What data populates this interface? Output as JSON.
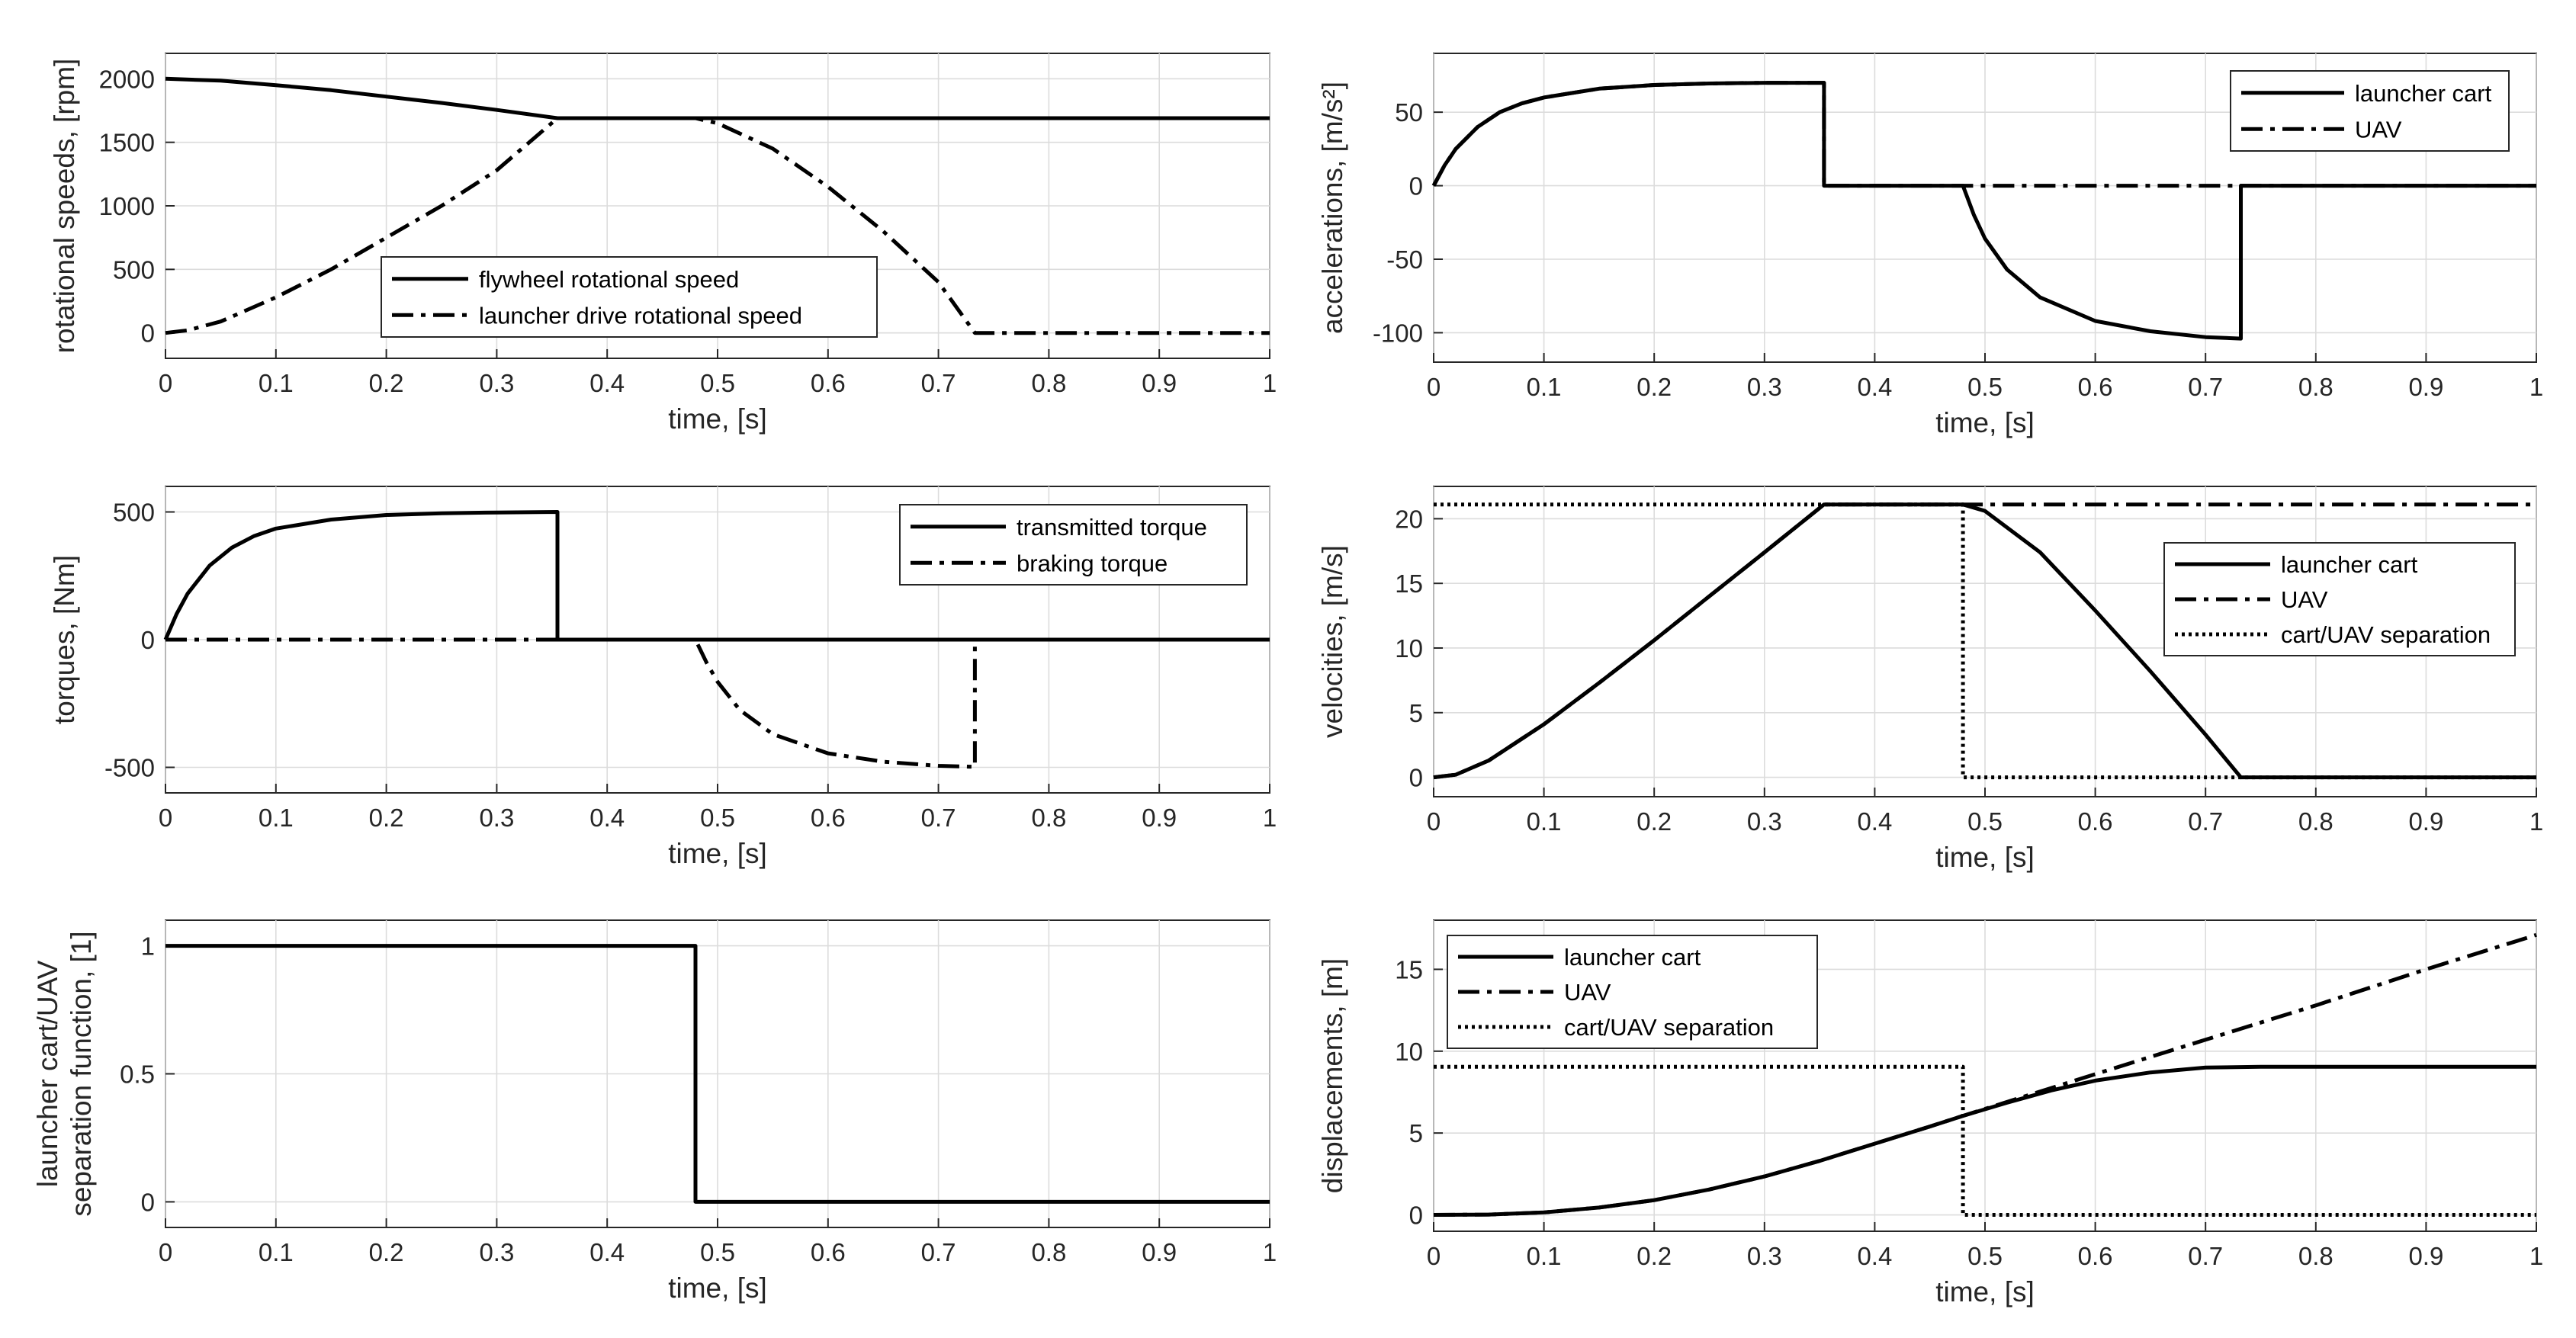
{
  "chart_data": [
    {
      "type": "line",
      "xlabel": "time, [s]",
      "ylabel": [
        "rotational speeds, [rpm]"
      ],
      "xlim": [
        0,
        1
      ],
      "ylim": [
        -200,
        2200
      ],
      "xticks": [
        0,
        0.1,
        0.2,
        0.3,
        0.4,
        0.5,
        0.6,
        0.7,
        0.8,
        0.9,
        1
      ],
      "xtick_labels": [
        "0",
        "0.1",
        "0.2",
        "0.3",
        "0.4",
        "0.5",
        "0.6",
        "0.7",
        "0.8",
        "0.9",
        "1"
      ],
      "yticks": [
        0,
        500,
        1000,
        1500,
        2000
      ],
      "ytick_labels": [
        "0",
        "500",
        "1000",
        "1500",
        "2000"
      ],
      "grid": true,
      "legend_position": "bottom-center",
      "series": [
        {
          "name": "flywheel rotational speed",
          "style": "solid",
          "x": [
            0,
            0.05,
            0.1,
            0.15,
            0.2,
            0.25,
            0.3,
            0.355,
            0.4,
            0.5,
            0.6,
            0.7,
            0.8,
            0.9,
            1
          ],
          "y": [
            2000,
            1985,
            1950,
            1910,
            1860,
            1810,
            1755,
            1690,
            1690,
            1690,
            1690,
            1690,
            1690,
            1690,
            1690
          ]
        },
        {
          "name": "launcher drive rotational speed",
          "style": "dashdot",
          "x": [
            0,
            0.02,
            0.05,
            0.1,
            0.15,
            0.2,
            0.25,
            0.3,
            0.355,
            0.48,
            0.5,
            0.55,
            0.6,
            0.65,
            0.7,
            0.733,
            0.8,
            0.9,
            1
          ],
          "y": [
            0,
            20,
            90,
            280,
            500,
            750,
            1000,
            1280,
            1690,
            1690,
            1650,
            1450,
            1150,
            800,
            400,
            0,
            0,
            0,
            0
          ]
        }
      ]
    },
    {
      "type": "line",
      "xlabel": "time, [s]",
      "ylabel": [
        "accelerations, [m/s²]"
      ],
      "xlim": [
        0,
        1
      ],
      "ylim": [
        -120,
        90
      ],
      "xticks": [
        0,
        0.1,
        0.2,
        0.3,
        0.4,
        0.5,
        0.6,
        0.7,
        0.8,
        0.9,
        1
      ],
      "xtick_labels": [
        "0",
        "0.1",
        "0.2",
        "0.3",
        "0.4",
        "0.5",
        "0.6",
        "0.7",
        "0.8",
        "0.9",
        "1"
      ],
      "yticks": [
        -100,
        -50,
        0,
        50
      ],
      "ytick_labels": [
        "-100",
        "-50",
        "0",
        "50"
      ],
      "grid": true,
      "legend_position": "top-right",
      "series": [
        {
          "name": "launcher cart",
          "style": "solid",
          "x": [
            0,
            0.01,
            0.02,
            0.04,
            0.06,
            0.08,
            0.1,
            0.15,
            0.2,
            0.25,
            0.3,
            0.354,
            0.354,
            0.48,
            0.49,
            0.5,
            0.52,
            0.55,
            0.6,
            0.65,
            0.7,
            0.732,
            0.732,
            1
          ],
          "y": [
            0,
            14,
            25,
            40,
            50,
            56,
            60,
            66,
            68.5,
            69.5,
            70,
            70,
            0,
            0,
            -20,
            -36,
            -57,
            -76,
            -92,
            -99,
            -103,
            -104,
            0,
            0
          ]
        },
        {
          "name": "UAV",
          "style": "dashdot",
          "x": [
            0,
            0.01,
            0.02,
            0.04,
            0.06,
            0.08,
            0.1,
            0.15,
            0.2,
            0.25,
            0.3,
            0.354,
            0.354,
            1
          ],
          "y": [
            0,
            14,
            25,
            40,
            50,
            56,
            60,
            66,
            68.5,
            69.5,
            70,
            70,
            0,
            0
          ]
        }
      ]
    },
    {
      "type": "line",
      "xlabel": "time, [s]",
      "ylabel": [
        "torques, [Nm]"
      ],
      "xlim": [
        0,
        1
      ],
      "ylim": [
        -600,
        600
      ],
      "xticks": [
        0,
        0.1,
        0.2,
        0.3,
        0.4,
        0.5,
        0.6,
        0.7,
        0.8,
        0.9,
        1
      ],
      "xtick_labels": [
        "0",
        "0.1",
        "0.2",
        "0.3",
        "0.4",
        "0.5",
        "0.6",
        "0.7",
        "0.8",
        "0.9",
        "1"
      ],
      "yticks": [
        -500,
        0,
        500
      ],
      "ytick_labels": [
        "-500",
        "0",
        "500"
      ],
      "grid": true,
      "legend_position": "top-right",
      "series": [
        {
          "name": "transmitted torque",
          "style": "solid",
          "x": [
            0,
            0.01,
            0.02,
            0.04,
            0.06,
            0.08,
            0.1,
            0.15,
            0.2,
            0.25,
            0.3,
            0.355,
            0.355,
            1
          ],
          "y": [
            0,
            100,
            180,
            290,
            360,
            405,
            435,
            470,
            488,
            495,
            498,
            500,
            0,
            0
          ]
        },
        {
          "name": "braking torque",
          "style": "dashdot",
          "x": [
            0,
            0.48,
            0.49,
            0.5,
            0.52,
            0.55,
            0.6,
            0.65,
            0.7,
            0.733,
            0.733
          ],
          "y": [
            0,
            0,
            -90,
            -165,
            -275,
            -370,
            -445,
            -478,
            -494,
            -498,
            0
          ]
        }
      ]
    },
    {
      "type": "line",
      "xlabel": "time, [s]",
      "ylabel": [
        "velocities, [m/s]"
      ],
      "xlim": [
        0,
        1
      ],
      "ylim": [
        -1.5,
        22.5
      ],
      "xticks": [
        0,
        0.1,
        0.2,
        0.3,
        0.4,
        0.5,
        0.6,
        0.7,
        0.8,
        0.9,
        1
      ],
      "xtick_labels": [
        "0",
        "0.1",
        "0.2",
        "0.3",
        "0.4",
        "0.5",
        "0.6",
        "0.7",
        "0.8",
        "0.9",
        "1"
      ],
      "yticks": [
        0,
        5,
        10,
        15,
        20
      ],
      "ytick_labels": [
        "0",
        "5",
        "10",
        "15",
        "20"
      ],
      "grid": true,
      "legend_position": "right",
      "series": [
        {
          "name": "launcher cart",
          "style": "solid",
          "x": [
            0,
            0.02,
            0.05,
            0.1,
            0.15,
            0.2,
            0.25,
            0.3,
            0.354,
            0.48,
            0.5,
            0.55,
            0.6,
            0.65,
            0.7,
            0.732,
            0.8,
            0.9,
            1
          ],
          "y": [
            0,
            0.2,
            1.3,
            4.1,
            7.3,
            10.6,
            14.0,
            17.4,
            21.1,
            21.1,
            20.6,
            17.4,
            12.9,
            8.2,
            3.3,
            0,
            0,
            0,
            0
          ]
        },
        {
          "name": "UAV",
          "style": "dashdot",
          "x": [
            0,
            0.02,
            0.05,
            0.1,
            0.15,
            0.2,
            0.25,
            0.3,
            0.354,
            1
          ],
          "y": [
            0,
            0.2,
            1.3,
            4.1,
            7.3,
            10.6,
            14.0,
            17.4,
            21.1,
            21.1
          ]
        },
        {
          "name": "cart/UAV separation",
          "style": "dotted",
          "x": [
            0,
            0.48,
            0.48,
            1
          ],
          "y": [
            21.1,
            21.1,
            0,
            0
          ]
        }
      ]
    },
    {
      "type": "line",
      "xlabel": "time, [s]",
      "ylabel": [
        "launcher cart/UAV",
        "separation function, [1]"
      ],
      "xlim": [
        0,
        1
      ],
      "ylim": [
        -0.1,
        1.1
      ],
      "xticks": [
        0,
        0.1,
        0.2,
        0.3,
        0.4,
        0.5,
        0.6,
        0.7,
        0.8,
        0.9,
        1
      ],
      "xtick_labels": [
        "0",
        "0.1",
        "0.2",
        "0.3",
        "0.4",
        "0.5",
        "0.6",
        "0.7",
        "0.8",
        "0.9",
        "1"
      ],
      "yticks": [
        0,
        0.5,
        1
      ],
      "ytick_labels": [
        "0",
        "0.5",
        "1"
      ],
      "grid": true,
      "legend_position": "none",
      "series": [
        {
          "name": "separation function",
          "style": "solid",
          "x": [
            0,
            0.48,
            0.48,
            1
          ],
          "y": [
            1,
            1,
            0,
            0
          ]
        }
      ]
    },
    {
      "type": "line",
      "xlabel": "time, [s]",
      "ylabel": [
        "displacements, [m]"
      ],
      "xlim": [
        0,
        1
      ],
      "ylim": [
        -1,
        18
      ],
      "xticks": [
        0,
        0.1,
        0.2,
        0.3,
        0.4,
        0.5,
        0.6,
        0.7,
        0.8,
        0.9,
        1
      ],
      "xtick_labels": [
        "0",
        "0.1",
        "0.2",
        "0.3",
        "0.4",
        "0.5",
        "0.6",
        "0.7",
        "0.8",
        "0.9",
        "1"
      ],
      "yticks": [
        0,
        5,
        10,
        15
      ],
      "ytick_labels": [
        "0",
        "5",
        "10",
        "15"
      ],
      "grid": true,
      "legend_position": "top-left",
      "series": [
        {
          "name": "launcher cart",
          "style": "solid",
          "x": [
            0,
            0.05,
            0.1,
            0.15,
            0.2,
            0.25,
            0.3,
            0.35,
            0.4,
            0.45,
            0.48,
            0.52,
            0.56,
            0.6,
            0.65,
            0.7,
            0.75,
            0.8,
            0.9,
            1
          ],
          "y": [
            0,
            0.02,
            0.15,
            0.45,
            0.9,
            1.55,
            2.35,
            3.3,
            4.35,
            5.4,
            6.05,
            6.85,
            7.6,
            8.2,
            8.7,
            9.0,
            9.05,
            9.05,
            9.05,
            9.05
          ]
        },
        {
          "name": "UAV",
          "style": "dashdot",
          "x": [
            0,
            0.05,
            0.1,
            0.15,
            0.2,
            0.25,
            0.3,
            0.35,
            0.4,
            0.45,
            0.48,
            0.6,
            0.7,
            0.8,
            0.9,
            1
          ],
          "y": [
            0,
            0.02,
            0.15,
            0.45,
            0.9,
            1.55,
            2.35,
            3.3,
            4.35,
            5.4,
            6.05,
            8.6,
            10.7,
            12.8,
            15.0,
            17.1
          ]
        },
        {
          "name": "cart/UAV separation",
          "style": "dotted",
          "x": [
            0,
            0.48,
            0.48,
            1
          ],
          "y": [
            9.05,
            9.05,
            0,
            0
          ]
        }
      ]
    }
  ]
}
